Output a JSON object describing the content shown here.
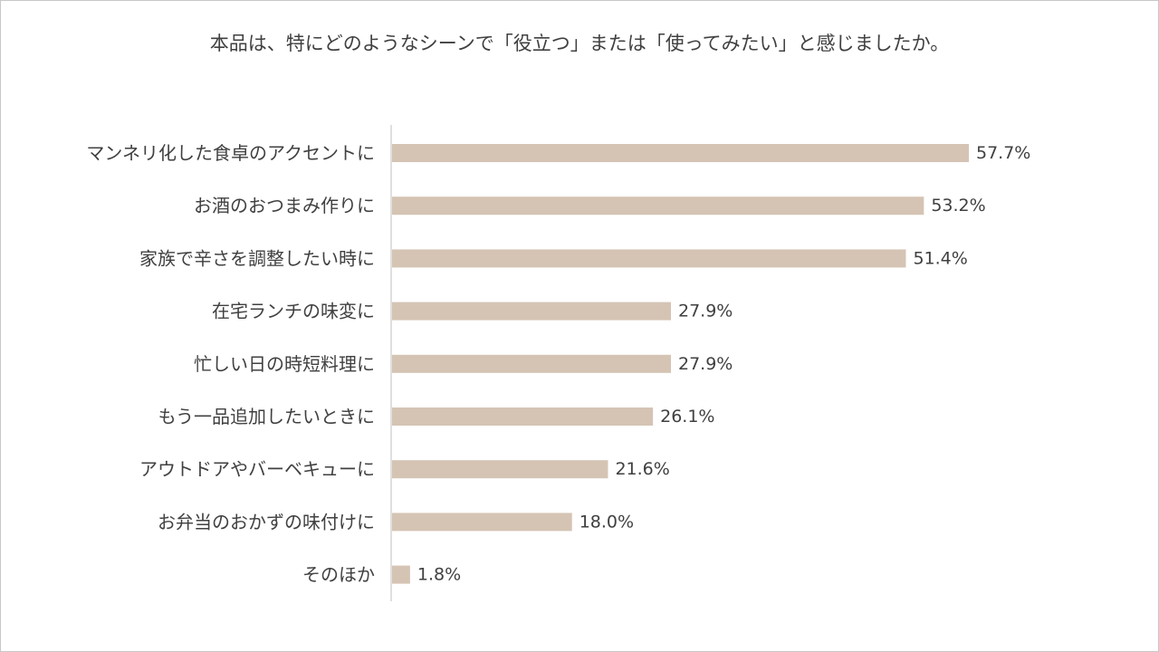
{
  "chart_data": {
    "type": "bar",
    "orientation": "horizontal",
    "title": "本品は、特にどのようなシーンで「役立つ」または「使ってみたい」と感じましたか。",
    "categories": [
      "マンネリ化した食卓のアクセントに",
      "お酒のおつまみ作りに",
      "家族で辛さを調整したい時に",
      "在宅ランチの味変に",
      "忙しい日の時短料理に",
      "もう一品追加したいときに",
      "アウトドアやバーベキューに",
      "お弁当のおかずの味付けに",
      "そのほか"
    ],
    "values": [
      57.7,
      53.2,
      51.4,
      27.9,
      27.9,
      26.1,
      21.6,
      18.0,
      1.8
    ],
    "value_labels": [
      "57.7%",
      "53.2%",
      "51.4%",
      "27.9%",
      "27.9%",
      "26.1%",
      "21.6%",
      "18.0%",
      "1.8%"
    ],
    "xlim": [
      0,
      60
    ],
    "grid": false,
    "legend": "none",
    "bar_color": "#d5c4b4",
    "axis_color": "#bfbfbf"
  }
}
